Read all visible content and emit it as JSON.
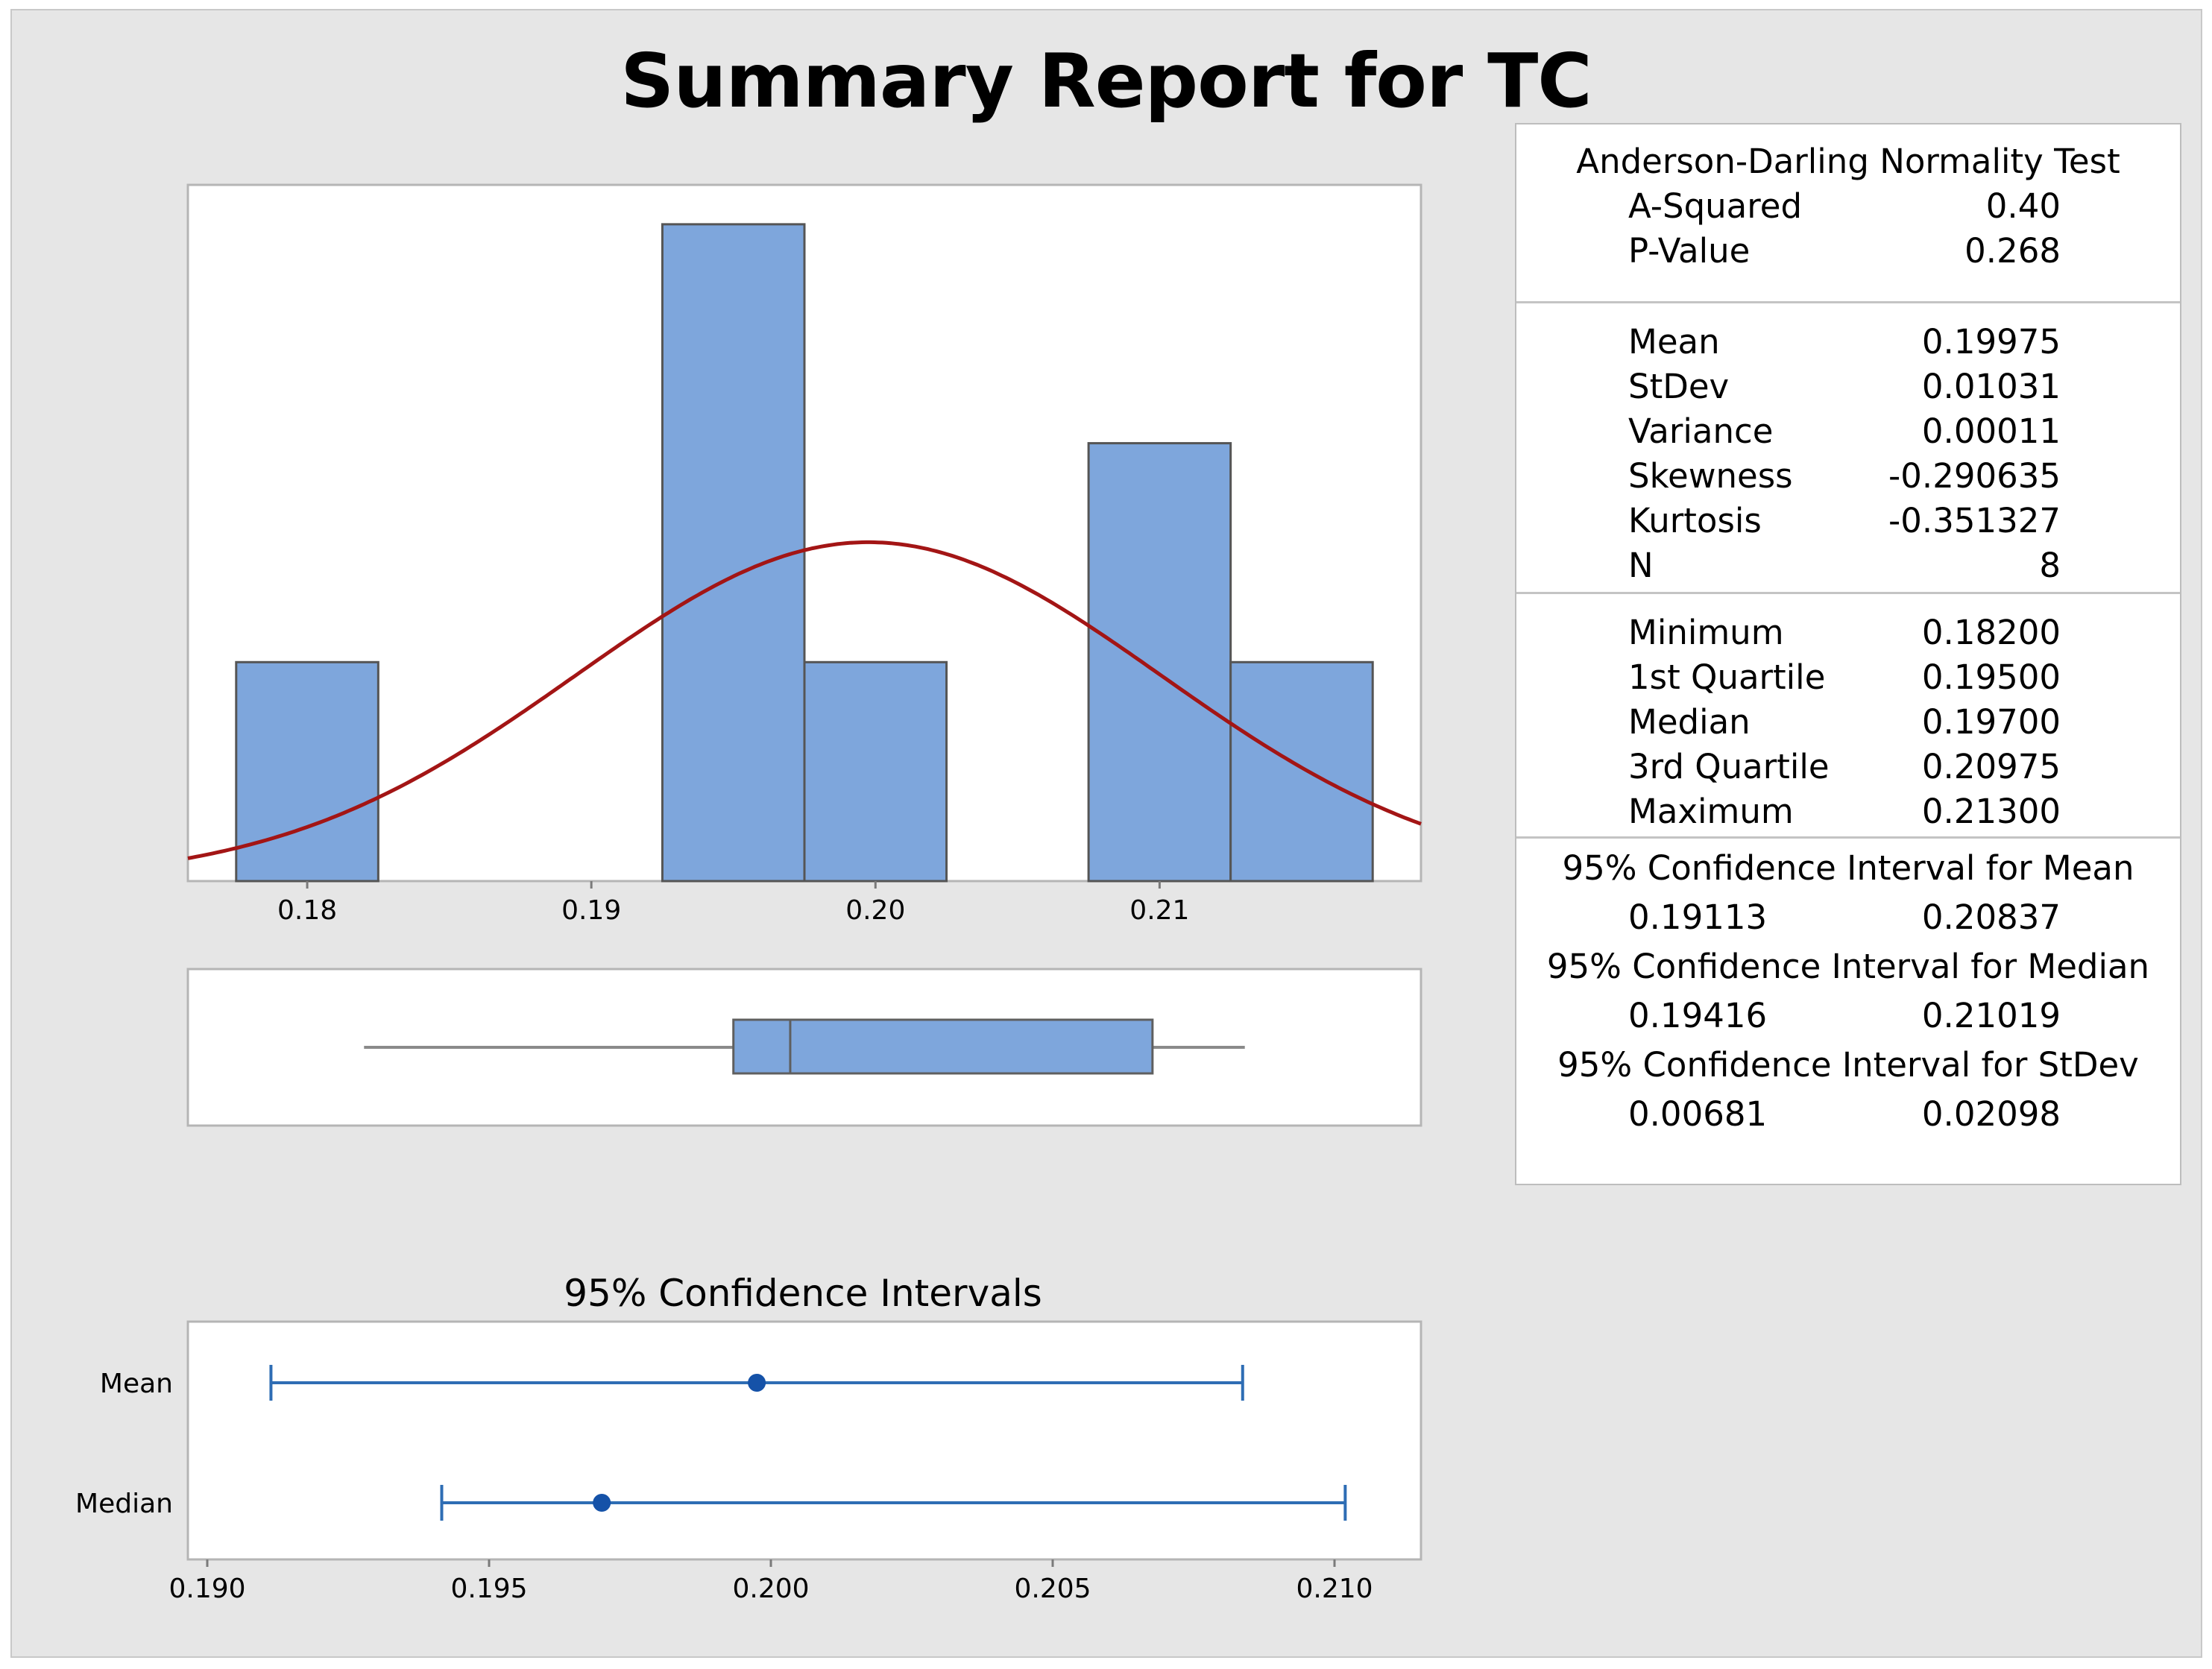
{
  "title": "Summary Report for TC",
  "stats": {
    "normality": {
      "heading": "Anderson-Darling Normality Test",
      "rows": [
        {
          "label": "A-Squared",
          "value": "0.40"
        },
        {
          "label": "P-Value",
          "value": "0.268"
        }
      ]
    },
    "moments": [
      {
        "label": "Mean",
        "value": "0.19975"
      },
      {
        "label": "StDev",
        "value": "0.01031"
      },
      {
        "label": "Variance",
        "value": "0.00011"
      },
      {
        "label": "Skewness",
        "value": "-0.290635"
      },
      {
        "label": "Kurtosis",
        "value": "-0.351327"
      },
      {
        "label": "N",
        "value": "8"
      }
    ],
    "quantiles": [
      {
        "label": "Minimum",
        "value": "0.18200"
      },
      {
        "label": "1st Quartile",
        "value": "0.19500"
      },
      {
        "label": "Median",
        "value": "0.19700"
      },
      {
        "label": "3rd Quartile",
        "value": "0.20975"
      },
      {
        "label": "Maximum",
        "value": "0.21300"
      }
    ],
    "intervals": [
      {
        "heading": "95% Confidence Interval for Mean",
        "lower": "0.19113",
        "upper": "0.20837"
      },
      {
        "heading": "95% Confidence Interval for Median",
        "lower": "0.19416",
        "upper": "0.21019"
      },
      {
        "heading": "95% Confidence Interval for StDev",
        "lower": "0.00681",
        "upper": "0.02098"
      }
    ]
  },
  "chart_data": [
    {
      "type": "bar",
      "subtype": "histogram",
      "bin_centers": [
        0.18,
        0.185,
        0.19,
        0.195,
        0.2,
        0.205,
        0.21,
        0.215
      ],
      "counts": [
        1,
        0,
        0,
        3,
        1,
        0,
        2,
        1
      ],
      "bin_width": 0.005,
      "xlim": [
        0.1758,
        0.2192
      ],
      "ylim": [
        0,
        3.18
      ],
      "x_ticks": [
        "0.18",
        "0.19",
        "0.20",
        "0.21"
      ],
      "normal_fit": {
        "mean": 0.19975,
        "stdev": 0.01031
      },
      "colors": {
        "bar": "#7ea6dc",
        "bar_edge": "#555555",
        "curve": "#a31515"
      }
    },
    {
      "type": "boxplot",
      "whisker_low": 0.182,
      "q1": 0.195,
      "median": 0.197,
      "q3": 0.20975,
      "whisker_high": 0.213,
      "xlim": [
        0.1758,
        0.2192
      ]
    },
    {
      "type": "interval",
      "title": "95% Confidence Intervals",
      "categories": [
        "Mean",
        "Median"
      ],
      "estimates": [
        0.19975,
        0.197
      ],
      "lower": [
        0.19113,
        0.19416
      ],
      "upper": [
        0.20837,
        0.21019
      ],
      "xlim": [
        0.19,
        0.2103
      ],
      "x_ticks": [
        "0.190",
        "0.195",
        "0.200",
        "0.205",
        "0.210"
      ],
      "colors": {
        "line": "#2e6db4",
        "point": "#1552a8"
      }
    }
  ]
}
